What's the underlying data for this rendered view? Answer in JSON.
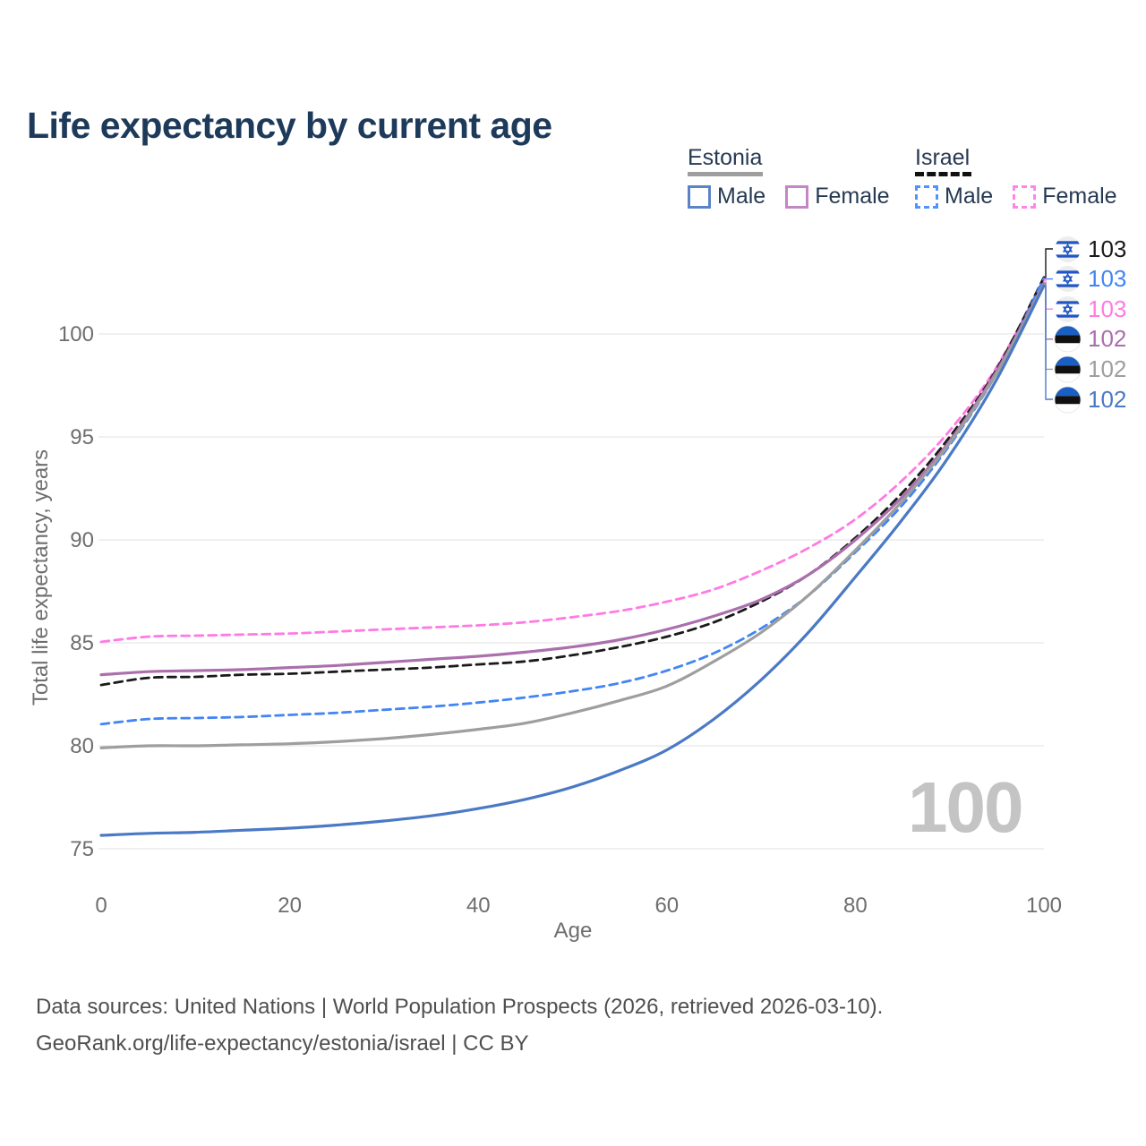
{
  "header": {
    "title": "Life expectancy by current age"
  },
  "legend": {
    "estonia": {
      "label": "Estonia",
      "male": "Male",
      "female": "Female",
      "male_swatch_color": "#5b84c8",
      "female_swatch_color": "#c287c4",
      "underline_color": "#9e9e9e"
    },
    "israel": {
      "label": "Israel",
      "male": "Male",
      "female": "Female",
      "male_swatch_color": "#4d94ff",
      "female_swatch_color": "#ff85e8",
      "underline_color": "#111111"
    }
  },
  "watermark": {
    "value": "100"
  },
  "footer": {
    "line1": "Data sources: United Nations | World Population Prospects (2026, retrieved 2026-03-10).",
    "line2": "GeoRank.org/life-expectancy/estonia/israel | CC BY"
  },
  "colors": {
    "grid": "#e8e8e8",
    "axis_text": "#6e6e6e",
    "title_text": "#1e3a5a",
    "legend_text": "#263a53",
    "footer_text": "#4f4f4f",
    "watermark_text": "#c4c4c4"
  },
  "chart_data": {
    "type": "line",
    "title": "Life expectancy by current age",
    "xlabel": "Age",
    "ylabel": "Total life expectancy, years",
    "xlim": [
      0,
      100
    ],
    "ylim": [
      75,
      103
    ],
    "xticks": [
      0,
      20,
      40,
      60,
      80,
      100
    ],
    "yticks": [
      75,
      80,
      85,
      90,
      95,
      100
    ],
    "grid": "horizontal",
    "legend_position": "top-right",
    "x": [
      0,
      5,
      10,
      15,
      20,
      25,
      30,
      35,
      40,
      45,
      50,
      55,
      60,
      65,
      70,
      75,
      80,
      85,
      90,
      95,
      100
    ],
    "series": [
      {
        "id": "israel_female",
        "country": "Israel",
        "sex": "Female",
        "style": "dashed",
        "color": "#ff7ae3",
        "end_label": "103",
        "values": [
          85.05,
          85.3,
          85.35,
          85.4,
          85.45,
          85.55,
          85.65,
          85.75,
          85.85,
          86.0,
          86.25,
          86.55,
          87.0,
          87.6,
          88.5,
          89.6,
          91.0,
          92.9,
          95.3,
          98.4,
          102.65
        ]
      },
      {
        "id": "israel_both",
        "country": "Israel",
        "sex": "Both sexes",
        "style": "dashed",
        "color": "#1a1a1a",
        "end_label": "103",
        "values": [
          82.95,
          83.3,
          83.35,
          83.45,
          83.5,
          83.6,
          83.7,
          83.8,
          83.95,
          84.1,
          84.4,
          84.8,
          85.3,
          86.0,
          87.0,
          88.3,
          90.1,
          92.3,
          95.0,
          98.3,
          102.75
        ]
      },
      {
        "id": "israel_male",
        "country": "Israel",
        "sex": "Male",
        "style": "dashed",
        "color": "#4285f4",
        "end_label": "103",
        "values": [
          81.05,
          81.3,
          81.35,
          81.4,
          81.5,
          81.6,
          81.75,
          81.9,
          82.1,
          82.35,
          82.65,
          83.05,
          83.65,
          84.5,
          85.7,
          87.3,
          89.4,
          91.7,
          94.6,
          98.1,
          102.7
        ]
      },
      {
        "id": "estonia_female",
        "country": "Estonia",
        "sex": "Female",
        "style": "solid",
        "color": "#ab6fad",
        "end_label": "102",
        "values": [
          83.45,
          83.6,
          83.65,
          83.7,
          83.8,
          83.9,
          84.05,
          84.2,
          84.35,
          84.55,
          84.8,
          85.15,
          85.65,
          86.3,
          87.1,
          88.3,
          90.0,
          92.1,
          94.8,
          98.2,
          102.45
        ]
      },
      {
        "id": "estonia_both",
        "country": "Estonia",
        "sex": "Both sexes",
        "style": "solid",
        "color": "#9e9e9e",
        "end_label": "102",
        "values": [
          79.9,
          80.0,
          80.0,
          80.05,
          80.1,
          80.2,
          80.35,
          80.55,
          80.8,
          81.1,
          81.6,
          82.2,
          82.9,
          84.1,
          85.5,
          87.3,
          89.5,
          91.9,
          94.7,
          98.1,
          102.4
        ]
      },
      {
        "id": "estonia_male",
        "country": "Estonia",
        "sex": "Male",
        "style": "solid",
        "color": "#4a79c5",
        "end_label": "102",
        "values": [
          75.65,
          75.75,
          75.8,
          75.9,
          76.0,
          76.15,
          76.35,
          76.6,
          76.95,
          77.4,
          78.0,
          78.8,
          79.8,
          81.3,
          83.2,
          85.5,
          88.2,
          91.0,
          94.1,
          97.8,
          102.35
        ]
      }
    ],
    "end_labels": [
      {
        "series": "israel_both",
        "flag": "israel",
        "value": "103",
        "color": "#1a1a1a"
      },
      {
        "series": "israel_male",
        "flag": "israel",
        "value": "103",
        "color": "#4285f4"
      },
      {
        "series": "israel_female",
        "flag": "israel",
        "value": "103",
        "color": "#ff7ae3"
      },
      {
        "series": "estonia_female",
        "flag": "estonia",
        "value": "102",
        "color": "#ab6fad"
      },
      {
        "series": "estonia_both",
        "flag": "estonia",
        "value": "102",
        "color": "#9e9e9e"
      },
      {
        "series": "estonia_male",
        "flag": "estonia",
        "value": "102",
        "color": "#4a79c5"
      }
    ]
  }
}
